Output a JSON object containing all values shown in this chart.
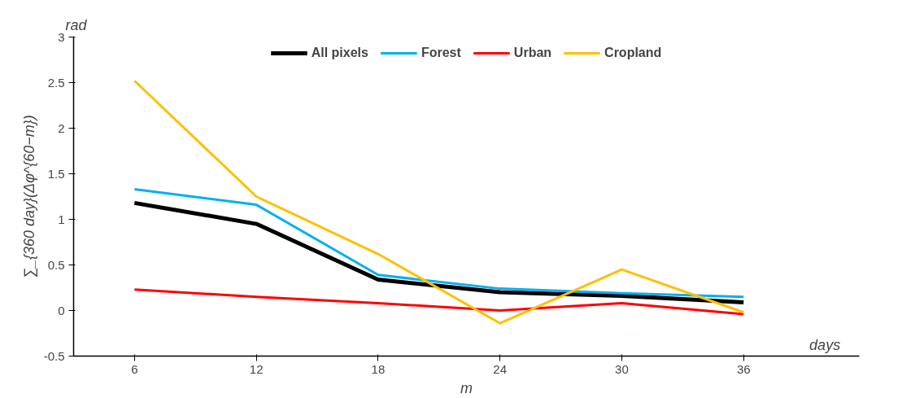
{
  "chart_data": {
    "type": "line",
    "xlabel": "m",
    "ylabel": "∑_{360 day}(Δφ^{60−m})",
    "annotations": [
      "rad",
      "days"
    ],
    "categories": [
      "6",
      "12",
      "18",
      "24",
      "30",
      "36"
    ],
    "ylim": [
      -0.5,
      3
    ],
    "yticks": [
      -0.5,
      0,
      0.5,
      1,
      1.5,
      2,
      2.5,
      3
    ],
    "grid": false,
    "legend": "top",
    "marker": "none",
    "line_style": "solid",
    "series": [
      {
        "name": "All pixels",
        "color": "#000000",
        "values": [
          1.18,
          0.95,
          0.34,
          0.2,
          0.16,
          0.09
        ]
      },
      {
        "name": "Forest",
        "color": "#00b0f0",
        "values": [
          1.33,
          1.16,
          0.39,
          0.24,
          0.19,
          0.15
        ]
      },
      {
        "name": "Urban",
        "color": "#ff0000",
        "values": [
          0.23,
          0.15,
          0.08,
          0.0,
          0.08,
          -0.04
        ]
      },
      {
        "name": "Cropland",
        "color": "#ffc000",
        "values": [
          2.52,
          1.25,
          0.62,
          -0.14,
          0.45,
          -0.02
        ]
      }
    ]
  }
}
